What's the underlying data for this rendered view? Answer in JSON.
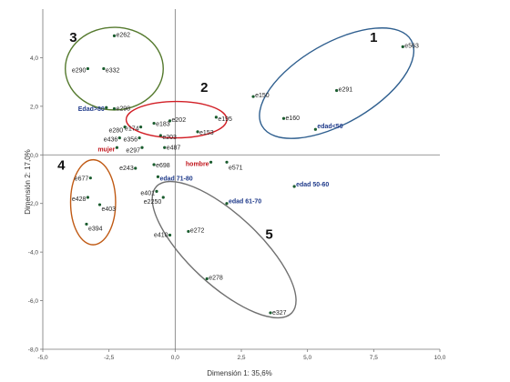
{
  "chart_data": {
    "type": "scatter",
    "xlabel": "Dimensión 1: 35,6%",
    "ylabel": "Dimensión 2: 17,0%",
    "xlim": [
      -5.0,
      10.0
    ],
    "ylim": [
      -8.0,
      6.0
    ],
    "xticks": [
      -5.0,
      -2.5,
      0.0,
      2.5,
      5.0,
      7.5,
      10.0
    ],
    "xtick_labels": [
      "-5,0",
      "-2,5",
      "0,0",
      "2,5",
      "5,0",
      "7,5",
      "10,0"
    ],
    "yticks": [
      -8.0,
      -6.0,
      -4.0,
      -2.0,
      0.0,
      2.0,
      4.0
    ],
    "ytick_labels": [
      "-8,0",
      "-6,0",
      "-4,0",
      "-2,0",
      "0,0",
      "2,0",
      "4,0"
    ],
    "grid": false,
    "colors": {
      "point": "#1a5c2e",
      "category_blue": "#1f3a8a",
      "category_red": "#c0141b",
      "axis": "#777777"
    },
    "points": [
      {
        "label": "e262",
        "x": -2.3,
        "y": 4.9,
        "style": "normal"
      },
      {
        "label": "e290",
        "x": -3.3,
        "y": 3.55,
        "style": "normal"
      },
      {
        "label": "e332",
        "x": -2.7,
        "y": 3.55,
        "style": "normal"
      },
      {
        "label": "Edad>80",
        "x": -2.6,
        "y": 1.95,
        "style": "blue"
      },
      {
        "label": "e298",
        "x": -2.3,
        "y": 1.9,
        "style": "normal"
      },
      {
        "label": "e202",
        "x": -0.2,
        "y": 1.4,
        "style": "normal"
      },
      {
        "label": "e183",
        "x": -0.8,
        "y": 1.3,
        "style": "normal"
      },
      {
        "label": "e174",
        "x": -1.3,
        "y": 1.15,
        "style": "normal"
      },
      {
        "label": "e195",
        "x": 1.55,
        "y": 1.55,
        "style": "normal"
      },
      {
        "label": "e153",
        "x": 0.85,
        "y": 0.95,
        "style": "normal"
      },
      {
        "label": "e203",
        "x": -0.55,
        "y": 0.8,
        "style": "normal"
      },
      {
        "label": "e280",
        "x": -1.9,
        "y": 1.15,
        "style": "normal"
      },
      {
        "label": "e436",
        "x": -2.1,
        "y": 0.7,
        "style": "normal"
      },
      {
        "label": "e356",
        "x": -1.35,
        "y": 0.7,
        "style": "normal"
      },
      {
        "label": "mujer",
        "x": -2.2,
        "y": 0.3,
        "style": "red"
      },
      {
        "label": "e297",
        "x": -1.25,
        "y": 0.3,
        "style": "normal"
      },
      {
        "label": "e487",
        "x": -0.4,
        "y": 0.3,
        "style": "normal"
      },
      {
        "label": "e698",
        "x": -0.8,
        "y": -0.4,
        "style": "normal"
      },
      {
        "label": "e243",
        "x": -1.5,
        "y": -0.55,
        "style": "normal"
      },
      {
        "label": "hombre",
        "x": 1.35,
        "y": -0.3,
        "style": "red"
      },
      {
        "label": "e571",
        "x": 1.95,
        "y": -0.3,
        "style": "normal"
      },
      {
        "label": "edad 71-80",
        "x": -0.65,
        "y": -0.9,
        "style": "blue"
      },
      {
        "label": "e677",
        "x": -3.2,
        "y": -0.95,
        "style": "normal"
      },
      {
        "label": "e401",
        "x": -0.7,
        "y": -1.5,
        "style": "normal"
      },
      {
        "label": "e428",
        "x": -3.3,
        "y": -1.75,
        "style": "normal"
      },
      {
        "label": "e2250",
        "x": -0.45,
        "y": -1.75,
        "style": "normal"
      },
      {
        "label": "e403",
        "x": -2.85,
        "y": -2.05,
        "style": "normal"
      },
      {
        "label": "edad 61-70",
        "x": 1.95,
        "y": -2.0,
        "style": "blue"
      },
      {
        "label": "e394",
        "x": -3.35,
        "y": -2.85,
        "style": "normal"
      },
      {
        "label": "e410",
        "x": -0.2,
        "y": -3.3,
        "style": "normal"
      },
      {
        "label": "e272",
        "x": 0.5,
        "y": -3.15,
        "style": "normal"
      },
      {
        "label": "e278",
        "x": 1.2,
        "y": -5.1,
        "style": "normal"
      },
      {
        "label": "e327",
        "x": 3.6,
        "y": -6.5,
        "style": "normal"
      },
      {
        "label": "edad 50-60",
        "x": 4.5,
        "y": -1.3,
        "style": "blue"
      },
      {
        "label": "e563",
        "x": 8.6,
        "y": 4.45,
        "style": "normal"
      },
      {
        "label": "e150",
        "x": 2.95,
        "y": 2.4,
        "style": "normal"
      },
      {
        "label": "e291",
        "x": 6.1,
        "y": 2.65,
        "style": "normal"
      },
      {
        "label": "e160",
        "x": 4.1,
        "y": 1.5,
        "style": "normal"
      },
      {
        "label": "edad<50",
        "x": 5.3,
        "y": 1.05,
        "style": "blue"
      }
    ],
    "clusters": [
      {
        "number": "1",
        "color": "#2f5f8f",
        "cx": 6.1,
        "cy": 2.95,
        "rx": 3.25,
        "ry": 1.65,
        "angle": -30
      },
      {
        "number": "2",
        "color": "#d21f26",
        "cx": 0.05,
        "cy": 1.45,
        "rx": 1.9,
        "ry": 0.75,
        "angle": 0
      },
      {
        "number": "3",
        "color": "#557a2e",
        "cx": -2.3,
        "cy": 3.55,
        "rx": 1.85,
        "ry": 1.7,
        "angle": 0
      },
      {
        "number": "4",
        "color": "#c05a14",
        "cx": -3.1,
        "cy": -1.95,
        "rx": 0.85,
        "ry": 1.75,
        "angle": 0
      },
      {
        "number": "5",
        "color": "#707070",
        "cx": 1.85,
        "cy": -3.9,
        "rx": 3.5,
        "ry": 1.45,
        "angle": 43
      }
    ],
    "cluster_number_positions": [
      {
        "number": "1",
        "x": 7.5,
        "y": 4.65
      },
      {
        "number": "2",
        "x": 1.1,
        "y": 2.6
      },
      {
        "number": "3",
        "x": -3.85,
        "y": 4.65
      },
      {
        "number": "4",
        "x": -4.3,
        "y": -0.6
      },
      {
        "number": "5",
        "x": 3.55,
        "y": -3.45
      }
    ]
  }
}
